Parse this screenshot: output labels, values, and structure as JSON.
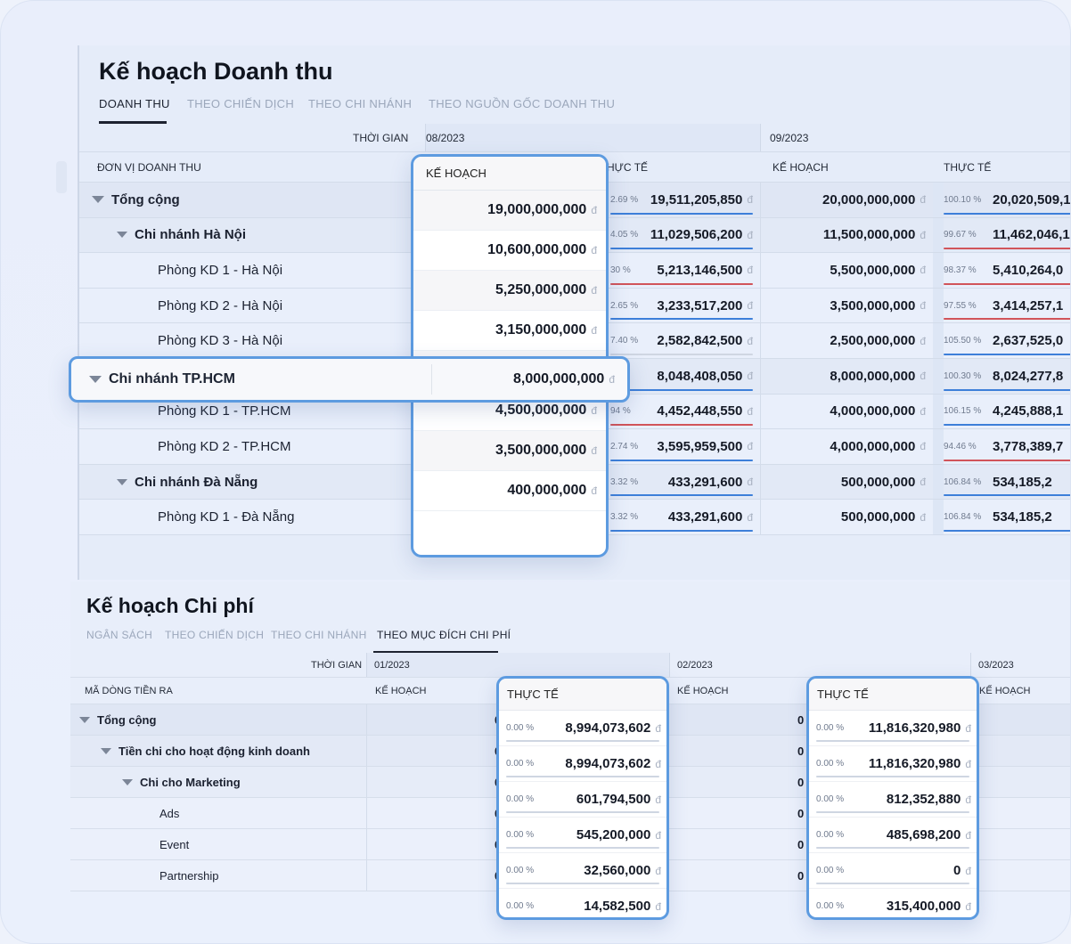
{
  "revenue": {
    "title": "Kế hoạch Doanh thu",
    "tabs": [
      "DOANH THU",
      "THEO CHIẾN DỊCH",
      "THEO CHI NHÁNH",
      "THEO NGUỒN GỐC DOANH THU"
    ],
    "time_label": "THỜI GIAN",
    "unit_label": "ĐƠN VỊ DOANH THU",
    "periods": [
      "08/2023",
      "09/2023"
    ],
    "col_plan": "KẾ HOẠCH",
    "col_actual": "THỰC TẾ",
    "col_actual_partial": "HỰC TẾ",
    "currency": "đ",
    "rows": [
      {
        "label": "Tổng cộng",
        "level": 0,
        "aug_plan": "19,000,000,000",
        "aug_pct": "2.69 %",
        "aug_actual": "19,511,205,850",
        "aug_bar": "blue",
        "sep_plan": "20,000,000,000",
        "sep_pct": "100.10 %",
        "sep_actual": "20,020,509,1",
        "sep_bar": "blue"
      },
      {
        "label": "Chi nhánh Hà Nội",
        "level": 1,
        "aug_plan": "10,600,000,000",
        "aug_pct": "4.05 %",
        "aug_actual": "11,029,506,200",
        "aug_bar": "blue",
        "sep_plan": "11,500,000,000",
        "sep_pct": "99.67 %",
        "sep_actual": "11,462,046,1",
        "sep_bar": "red"
      },
      {
        "label": "Phòng KD 1 - Hà Nội",
        "level": 2,
        "aug_plan": "5,250,000,000",
        "aug_pct": "30 %",
        "aug_actual": "5,213,146,500",
        "aug_bar": "red",
        "sep_plan": "5,500,000,000",
        "sep_pct": "98.37 %",
        "sep_actual": "5,410,264,0",
        "sep_bar": "red"
      },
      {
        "label": "Phòng KD 2 - Hà Nội",
        "level": 2,
        "aug_plan": "3,150,000,000",
        "aug_pct": "2.65 %",
        "aug_actual": "3,233,517,200",
        "aug_bar": "blue",
        "sep_plan": "3,500,000,000",
        "sep_pct": "97.55 %",
        "sep_actual": "3,414,257,1",
        "sep_bar": "red"
      },
      {
        "label": "Phòng KD 3 - Hà Nội",
        "level": 2,
        "aug_plan": "",
        "aug_pct": "7.40 %",
        "aug_actual": "2,582,842,500",
        "aug_bar": "grey",
        "sep_plan": "2,500,000,000",
        "sep_pct": "105.50 %",
        "sep_actual": "2,637,525,0",
        "sep_bar": "blue"
      },
      {
        "label": "Chi nhánh TP.HCM",
        "level": 1,
        "aug_plan": "",
        "aug_pct": "",
        "aug_actual": "8,048,408,050",
        "aug_bar": "blue",
        "sep_plan": "8,000,000,000",
        "sep_pct": "100.30 %",
        "sep_actual": "8,024,277,8",
        "sep_bar": "blue"
      },
      {
        "label": "Phòng KD 1 - TP.HCM",
        "level": 2,
        "aug_plan": "",
        "aug_pct": "94 %",
        "aug_actual": "4,452,448,550",
        "aug_bar": "red",
        "sep_plan": "4,000,000,000",
        "sep_pct": "106.15 %",
        "sep_actual": "4,245,888,1",
        "sep_bar": "blue"
      },
      {
        "label": "Phòng KD 2 - TP.HCM",
        "level": 2,
        "aug_plan": "",
        "aug_pct": "2.74 %",
        "aug_actual": "3,595,959,500",
        "aug_bar": "blue",
        "sep_plan": "4,000,000,000",
        "sep_pct": "94.46 %",
        "sep_actual": "3,778,389,7",
        "sep_bar": "red"
      },
      {
        "label": "Chi nhánh Đà Nẵng",
        "level": 1,
        "aug_plan": "",
        "aug_pct": "3.32 %",
        "aug_actual": "433,291,600",
        "aug_bar": "blue",
        "sep_plan": "500,000,000",
        "sep_pct": "106.84 %",
        "sep_actual": "534,185,2",
        "sep_bar": "blue"
      },
      {
        "label": "Phòng KD 1 - Đà Nẵng",
        "level": 2,
        "aug_plan": "",
        "aug_pct": "3.32 %",
        "aug_actual": "433,291,600",
        "aug_bar": "blue",
        "sep_plan": "500,000,000",
        "sep_pct": "106.84 %",
        "sep_actual": "534,185,2",
        "sep_bar": "blue"
      }
    ],
    "highlight_plan_column": [
      "19,000,000,000",
      "10,600,000,000",
      "5,250,000,000",
      "3,150,000,000",
      "8,000,000,000",
      "4,500,000,000",
      "3,500,000,000",
      "400,000,000"
    ],
    "highlight_row": {
      "label": "Chi nhánh TP.HCM",
      "value": "8,000,000,000"
    }
  },
  "expense": {
    "title": "Kế hoạch Chi phí",
    "tabs": [
      "NGÂN SÁCH",
      "THEO CHIẾN DỊCH",
      "THEO CHI NHÁNH",
      "THEO MỤC ĐÍCH CHI PHÍ"
    ],
    "time_label": "THỜI GIAN",
    "code_label": "MÃ DÒNG TIỀN RA",
    "periods": [
      "01/2023",
      "02/2023",
      "03/2023"
    ],
    "col_plan": "KẾ HOẠCH",
    "col_actual": "THỰC TẾ",
    "rows": [
      {
        "label": "Tổng cộng",
        "level": 0
      },
      {
        "label": "Tiền chi cho hoạt động kinh doanh",
        "level": 1
      },
      {
        "label": "Chi cho Marketing",
        "level": 2
      },
      {
        "label": "Ads",
        "level": 3
      },
      {
        "label": "Event",
        "level": 3
      },
      {
        "label": "Partnership",
        "level": 3
      }
    ],
    "plan_value": "0",
    "jan_actual": [
      {
        "pct": "0.00 %",
        "value": "8,994,073,602"
      },
      {
        "pct": "0.00 %",
        "value": "8,994,073,602"
      },
      {
        "pct": "0.00 %",
        "value": "601,794,500"
      },
      {
        "pct": "0.00 %",
        "value": "545,200,000"
      },
      {
        "pct": "0.00 %",
        "value": "32,560,000"
      },
      {
        "pct": "0.00 %",
        "value": "14,582,500"
      }
    ],
    "feb_actual": [
      {
        "pct": "0.00 %",
        "value": "11,816,320,980"
      },
      {
        "pct": "0.00 %",
        "value": "11,816,320,980"
      },
      {
        "pct": "0.00 %",
        "value": "812,352,880"
      },
      {
        "pct": "0.00 %",
        "value": "485,698,200"
      },
      {
        "pct": "0.00 %",
        "value": "0"
      },
      {
        "pct": "0.00 %",
        "value": "315,400,000"
      }
    ]
  }
}
